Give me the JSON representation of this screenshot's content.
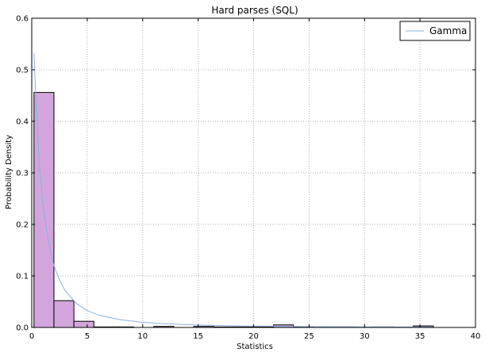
{
  "chart_data": {
    "type": "bar",
    "title": "Hard parses (SQL)",
    "xlabel": "Statistics",
    "ylabel": "Probability Density",
    "xlim": [
      0,
      40
    ],
    "ylim": [
      0,
      0.6
    ],
    "x_ticks": [
      "0",
      "5",
      "10",
      "15",
      "20",
      "25",
      "30",
      "35",
      "40"
    ],
    "y_ticks": [
      "0.0",
      "0.1",
      "0.2",
      "0.3",
      "0.4",
      "0.5",
      "0.6"
    ],
    "grid": true,
    "legend_position": "top-right",
    "bar_color": "#d2a6dc",
    "line_color": "#8ab2e2",
    "bins": [
      {
        "x0": 0.2,
        "x1": 2.0,
        "density": 0.456
      },
      {
        "x0": 2.0,
        "x1": 3.8,
        "density": 0.052
      },
      {
        "x0": 3.8,
        "x1": 5.6,
        "density": 0.012
      },
      {
        "x0": 5.6,
        "x1": 7.4,
        "density": 0.001
      },
      {
        "x0": 7.4,
        "x1": 9.2,
        "density": 0.001
      },
      {
        "x0": 9.2,
        "x1": 11.0,
        "density": 0.0
      },
      {
        "x0": 11.0,
        "x1": 12.8,
        "density": 0.002
      },
      {
        "x0": 12.8,
        "x1": 14.6,
        "density": 0.0
      },
      {
        "x0": 14.6,
        "x1": 16.4,
        "density": 0.002
      },
      {
        "x0": 16.4,
        "x1": 18.2,
        "density": 0.001
      },
      {
        "x0": 18.2,
        "x1": 20.0,
        "density": 0.001
      },
      {
        "x0": 20.0,
        "x1": 21.8,
        "density": 0.001
      },
      {
        "x0": 21.8,
        "x1": 23.6,
        "density": 0.005
      },
      {
        "x0": 23.6,
        "x1": 25.4,
        "density": 0.001
      },
      {
        "x0": 25.4,
        "x1": 27.2,
        "density": 0.0
      },
      {
        "x0": 27.2,
        "x1": 29.0,
        "density": 0.001
      },
      {
        "x0": 29.0,
        "x1": 30.8,
        "density": 0.0
      },
      {
        "x0": 30.8,
        "x1": 32.6,
        "density": 0.001
      },
      {
        "x0": 32.6,
        "x1": 34.4,
        "density": 0.0
      },
      {
        "x0": 34.4,
        "x1": 36.2,
        "density": 0.003
      }
    ],
    "series": [
      {
        "name": "Gamma",
        "x": [
          0.2,
          0.4,
          0.7,
          1.0,
          1.5,
          2.0,
          2.5,
          3.0,
          4.0,
          5.0,
          6.0,
          8.0,
          10.0,
          12.0,
          15.0,
          18.0,
          20.0,
          25.0,
          30.0,
          35.0,
          36.0
        ],
        "y": [
          0.532,
          0.43,
          0.31,
          0.24,
          0.165,
          0.12,
          0.092,
          0.072,
          0.047,
          0.033,
          0.024,
          0.015,
          0.01,
          0.0072,
          0.0048,
          0.0033,
          0.0027,
          0.0017,
          0.0011,
          0.0008,
          0.0007
        ]
      }
    ]
  }
}
